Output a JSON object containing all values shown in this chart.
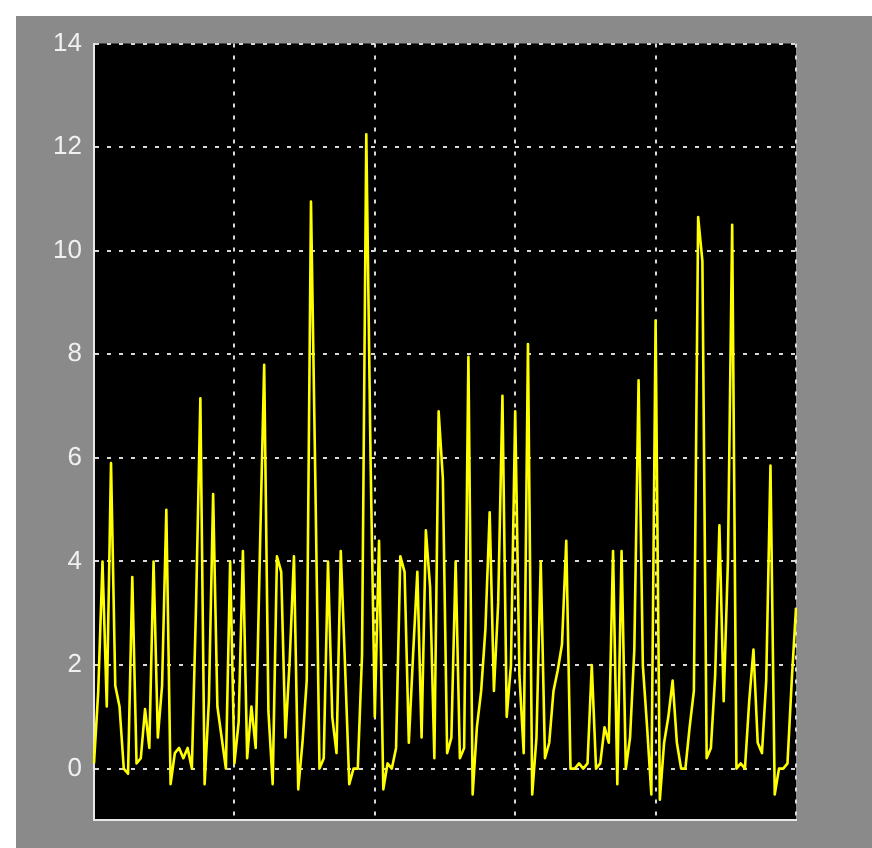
{
  "chart_data": {
    "type": "line",
    "categories": [
      null,
      null,
      null,
      null,
      null,
      null,
      null,
      null,
      null,
      null,
      null,
      null,
      null,
      null,
      null,
      null,
      null,
      null,
      null,
      null,
      null,
      null,
      null,
      null,
      null,
      null,
      null,
      null,
      null,
      null,
      null,
      null,
      null,
      null,
      null,
      null,
      null,
      null,
      null,
      null,
      null,
      null,
      null,
      null,
      null,
      null,
      null,
      null,
      null,
      null,
      null,
      null,
      null,
      null,
      null,
      null,
      null,
      null,
      null,
      null,
      null,
      null,
      null,
      null,
      null,
      null,
      null,
      null,
      null,
      null,
      null,
      null,
      null,
      null,
      null,
      null,
      null,
      null,
      null,
      null,
      null,
      null,
      null,
      null,
      null,
      null,
      null,
      null,
      null,
      null,
      null,
      null,
      null,
      null,
      null,
      null,
      null,
      null,
      null,
      null,
      null,
      null,
      null,
      null,
      null,
      null,
      null,
      null,
      null,
      null,
      null,
      null,
      null,
      null,
      null,
      null,
      null,
      null,
      null,
      null,
      null,
      null,
      null,
      null,
      null,
      null,
      null,
      null,
      null,
      null,
      null,
      null,
      null,
      null,
      null,
      null,
      null,
      null,
      null,
      null,
      null,
      null,
      null,
      null,
      null,
      null,
      null,
      null,
      null,
      null,
      null,
      null,
      null,
      null,
      null,
      null,
      null,
      null,
      null,
      null,
      null,
      null,
      null,
      null,
      null,
      null
    ],
    "ylim": [
      -1,
      14
    ],
    "yticks": [
      0,
      2,
      4,
      6,
      8,
      10,
      12,
      14
    ],
    "tick_labels": "y",
    "grid": true,
    "marker": "none",
    "line_style": "solid",
    "series": [
      {
        "color": "#ffff00",
        "values": [
          0.1,
          1.5,
          4.0,
          1.2,
          5.9,
          1.6,
          1.2,
          0,
          -0.1,
          3.7,
          0.1,
          0.2,
          1.15,
          0.4,
          4.0,
          0.6,
          1.6,
          5.0,
          -0.3,
          0.3,
          0.4,
          0.2,
          0.4,
          0,
          3.2,
          7.15,
          -0.3,
          1.3,
          5.3,
          1.2,
          0.6,
          0,
          4.0,
          0.1,
          0.9,
          4.2,
          0.2,
          1.2,
          0.4,
          4.2,
          7.8,
          1.1,
          -0.3,
          4.1,
          3.8,
          0.6,
          2.1,
          4.1,
          -0.4,
          0.5,
          1.7,
          10.95,
          5.7,
          0,
          0.2,
          4.0,
          1.0,
          0.3,
          4.2,
          2.0,
          -0.3,
          0,
          0,
          2.2,
          12.25,
          6.0,
          1.0,
          4.4,
          -0.4,
          0.1,
          0,
          0.4,
          4.1,
          3.8,
          0.5,
          2.2,
          3.8,
          0.6,
          4.6,
          3.5,
          0.2,
          6.9,
          5.6,
          0.3,
          0.6,
          4.0,
          0.2,
          0.4,
          7.95,
          -0.5,
          0.8,
          1.5,
          2.7,
          4.95,
          1.5,
          3.2,
          7.2,
          1.0,
          2.0,
          6.9,
          1.8,
          0.3,
          8.2,
          -0.5,
          0.6,
          4.0,
          0.2,
          0.5,
          1.5,
          1.9,
          2.4,
          4.4,
          0,
          0,
          0.1,
          0,
          0.1,
          2.0,
          0,
          0.1,
          0.8,
          0.5,
          4.2,
          -0.3,
          4.2,
          0,
          0.6,
          2.3,
          7.5,
          2.0,
          0.8,
          -0.5,
          8.65,
          -0.6,
          0.5,
          1.0,
          1.7,
          0.5,
          0,
          0,
          0.8,
          1.5,
          10.65,
          9.8,
          0.2,
          0.4,
          1.8,
          4.7,
          1.3,
          4.0,
          10.5,
          0,
          0.1,
          0,
          1.3,
          2.3,
          0.5,
          0.3,
          1.7,
          5.85,
          -0.5,
          0,
          0,
          0.1,
          1.7,
          3.1
        ]
      }
    ]
  }
}
